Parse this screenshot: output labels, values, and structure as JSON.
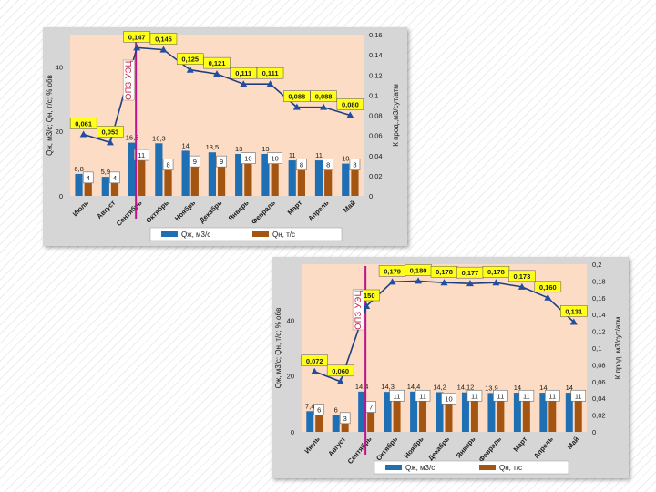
{
  "colors": {
    "plot_bg": "#fcdcc4",
    "qzh": "#1f6fb5",
    "qn": "#a45512",
    "line": "#1f3f7f",
    "marker": "#1f4fa0",
    "k_label_bg": "#ffff1a",
    "opz": "#c0148c"
  },
  "chart_data": [
    {
      "type": "bar",
      "title": "",
      "categories": [
        "Июль",
        "Август",
        "Сентябрь",
        "Октябрь",
        "Ноябрь",
        "Декабрь",
        "Январь",
        "Февраль",
        "Март",
        "Апрель",
        "Май"
      ],
      "ylabel": "Qж, м3/с; Qн, т/с; % обв",
      "y2label": "К прод.,м3/сут/атм",
      "ylim": [
        0,
        50
      ],
      "y2lim": [
        0,
        0.16
      ],
      "yticks": [
        0,
        20,
        40
      ],
      "yticks_labels": [
        "0",
        "20",
        "40"
      ],
      "y2ticks": [
        0,
        0.02,
        0.04,
        0.06,
        0.08,
        0.1,
        0.12,
        0.14,
        0.16
      ],
      "y2ticks_labels": [
        "0",
        "0,02",
        "0,04",
        "0,06",
        "0,08",
        "0,1",
        "0,12",
        "0,14",
        "0,16"
      ],
      "opz_category_index": 2,
      "opz_label": "ОПЗ УЭЦ",
      "series": [
        {
          "name": "Qж, м3/с",
          "values": [
            6.8,
            5.9,
            16.5,
            16.3,
            14,
            13.5,
            13,
            13,
            11,
            11,
            10
          ],
          "labels": [
            "6,8",
            "5,9",
            "16,5",
            "16,3",
            "14",
            "13,5",
            "13",
            "13",
            "11",
            "11",
            "10"
          ]
        },
        {
          "name": "Qн, т/с",
          "values": [
            4,
            4,
            11,
            8,
            9,
            9,
            10,
            10,
            8,
            8,
            8
          ],
          "labels": [
            "4",
            "4",
            "11",
            "8",
            "9",
            "9",
            "10",
            "10",
            "8",
            "8",
            "8"
          ]
        },
        {
          "name": "К прод.",
          "values": [
            0.061,
            0.053,
            0.147,
            0.145,
            0.125,
            0.121,
            0.111,
            0.111,
            0.088,
            0.088,
            0.08
          ],
          "labels": [
            "0,061",
            "0,053",
            "0,147",
            "0,145",
            "0,125",
            "0,121",
            "0,111",
            "0,111",
            "0,088",
            "0,088",
            "0,080"
          ]
        }
      ]
    },
    {
      "type": "bar",
      "title": "",
      "categories": [
        "Июль",
        "Август",
        "Сентябрь",
        "Октябрь",
        "Ноябрь",
        "Декабрь",
        "Январь",
        "Февраль",
        "Март",
        "Апрель",
        "Май"
      ],
      "ylabel": "Qж, м3/с; Qн, т/с; % обв",
      "y2label": "К прод.,м3/сут/атм",
      "ylim": [
        0,
        60
      ],
      "y2lim": [
        0,
        0.2
      ],
      "yticks": [
        0,
        20,
        40
      ],
      "yticks_labels": [
        "0",
        "20",
        "40"
      ],
      "y2ticks": [
        0,
        0.02,
        0.04,
        0.06,
        0.08,
        0.1,
        0.12,
        0.14,
        0.16,
        0.18,
        0.2
      ],
      "y2ticks_labels": [
        "0",
        "0,02",
        "0,04",
        "0,06",
        "0,08",
        "0,1",
        "0,12",
        "0,14",
        "0,16",
        "0,18",
        "0,2"
      ],
      "opz_category_index": 2,
      "opz_label": "ОПЗ УЭЦ",
      "series": [
        {
          "name": "Qж, м3/с",
          "values": [
            7.4,
            6,
            14.4,
            14.3,
            14.4,
            14.2,
            14.12,
            13.9,
            14,
            14,
            14
          ],
          "labels": [
            "7,4",
            "6",
            "14,4",
            "14,3",
            "14,4",
            "14,2",
            "14,12",
            "13,9",
            "14",
            "14",
            "14"
          ]
        },
        {
          "name": "Qн, т/с",
          "values": [
            6,
            3,
            7,
            11,
            11,
            10,
            11,
            11,
            11,
            11,
            11
          ],
          "labels": [
            "6",
            "3",
            "7",
            "11",
            "11",
            "10",
            "11",
            "11",
            "11",
            "11",
            "11"
          ]
        },
        {
          "name": "К прод.",
          "values": [
            0.072,
            0.06,
            0.15,
            0.179,
            0.18,
            0.178,
            0.177,
            0.178,
            0.173,
            0.16,
            0.131
          ],
          "labels": [
            "0,072",
            "0,060",
            "0,150",
            "0,179",
            "0,180",
            "0,178",
            "0,177",
            "0,178",
            "0,173",
            "0,160",
            "0,131"
          ]
        }
      ]
    }
  ]
}
